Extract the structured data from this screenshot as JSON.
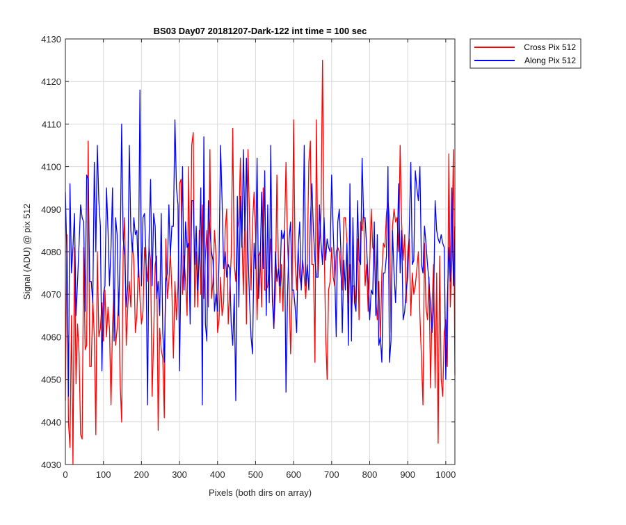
{
  "chart_data": {
    "type": "line",
    "title": "BS03 Day07 20181207-Dark-122 int time = 100 sec",
    "xlabel": "Pixels (both dirs on array)",
    "ylabel": "Signal (ADU) @ pix 512",
    "xlim": [
      0,
      1024
    ],
    "ylim": [
      4030,
      4130
    ],
    "xticks": [
      "0",
      "100",
      "200",
      "300",
      "400",
      "500",
      "600",
      "700",
      "800",
      "900",
      "1000"
    ],
    "yticks": [
      "4030",
      "4040",
      "4050",
      "4060",
      "4070",
      "4080",
      "4090",
      "4100",
      "4110",
      "4120",
      "4130"
    ],
    "grid": true,
    "legend_position": "outside-top-right",
    "series": [
      {
        "name": "Cross Pix 512",
        "color": "#ff0000",
        "mean_profile": [
          [
            0,
            4069
          ],
          [
            60,
            4064
          ],
          [
            120,
            4066
          ],
          [
            200,
            4069
          ],
          [
            260,
            4070
          ],
          [
            340,
            4076
          ],
          [
            440,
            4077
          ],
          [
            540,
            4076
          ],
          [
            640,
            4077
          ],
          [
            700,
            4081
          ],
          [
            760,
            4079
          ],
          [
            860,
            4078
          ],
          [
            940,
            4073
          ],
          [
            1000,
            4064
          ],
          [
            1024,
            4068
          ]
        ],
        "spread": 10,
        "extremes": [
          [
            2,
            4045
          ],
          [
            7,
            4040
          ],
          [
            12,
            4034
          ],
          [
            20,
            4030
          ],
          [
            30,
            4049
          ],
          [
            40,
            4037
          ],
          [
            45,
            4036
          ],
          [
            60,
            4106
          ],
          [
            80,
            4037
          ],
          [
            90,
            4060
          ],
          [
            120,
            4044
          ],
          [
            150,
            4040
          ],
          [
            160,
            4058
          ],
          [
            230,
            4046
          ],
          [
            245,
            4038
          ],
          [
            260,
            4041
          ],
          [
            325,
            4100
          ],
          [
            333,
            4105
          ],
          [
            335,
            4108
          ],
          [
            380,
            4104
          ],
          [
            440,
            4109
          ],
          [
            450,
            4073
          ],
          [
            460,
            4102
          ],
          [
            480,
            4104
          ],
          [
            520,
            4095
          ],
          [
            555,
            4098
          ],
          [
            600,
            4111
          ],
          [
            640,
            4101
          ],
          [
            645,
            4106
          ],
          [
            660,
            4111
          ],
          [
            677,
            4125
          ],
          [
            690,
            4050
          ],
          [
            820,
            4064
          ],
          [
            880,
            4105
          ],
          [
            940,
            4044
          ],
          [
            960,
            4048
          ],
          [
            980,
            4035
          ],
          [
            990,
            4050
          ],
          [
            1010,
            4103
          ],
          [
            1020,
            4104
          ],
          [
            1024,
            4051
          ]
        ]
      },
      {
        "name": "Along Pix 512",
        "color": "#0000ff",
        "mean_profile": [
          [
            0,
            4079
          ],
          [
            100,
            4080
          ],
          [
            200,
            4079
          ],
          [
            300,
            4078
          ],
          [
            400,
            4077
          ],
          [
            500,
            4077
          ],
          [
            600,
            4077
          ],
          [
            700,
            4077
          ],
          [
            800,
            4077
          ],
          [
            900,
            4076
          ],
          [
            1000,
            4077
          ],
          [
            1024,
            4077
          ]
        ],
        "spread": 11,
        "extremes": [
          [
            2,
            4094
          ],
          [
            10,
            4046
          ],
          [
            60,
            4097
          ],
          [
            85,
            4105
          ],
          [
            95,
            4052
          ],
          [
            150,
            4110
          ],
          [
            170,
            4105
          ],
          [
            195,
            4118
          ],
          [
            215,
            4044
          ],
          [
            290,
            4111
          ],
          [
            300,
            4052
          ],
          [
            310,
            4100
          ],
          [
            360,
            4044
          ],
          [
            410,
            4105
          ],
          [
            450,
            4045
          ],
          [
            540,
            4105
          ],
          [
            580,
            4047
          ],
          [
            630,
            4105
          ],
          [
            700,
            4098
          ],
          [
            850,
            4100
          ],
          [
            920,
            4099
          ],
          [
            1000,
            4050
          ],
          [
            1015,
            4095
          ]
        ]
      }
    ]
  }
}
